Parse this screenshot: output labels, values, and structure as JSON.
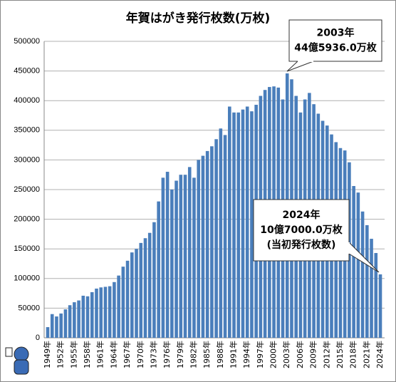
{
  "chart_data": {
    "type": "bar",
    "title": "年賀はがき発行枚数(万枚)",
    "categories": [
      "1949年",
      null,
      null,
      "1952年",
      null,
      null,
      "1955年",
      null,
      null,
      "1958年",
      null,
      null,
      "1961年",
      null,
      null,
      "1964年",
      null,
      null,
      "1967年",
      null,
      null,
      "1970年",
      null,
      null,
      "1973年",
      null,
      null,
      "1976年",
      null,
      null,
      "1979年",
      null,
      null,
      "1982年",
      null,
      null,
      "1985年",
      null,
      null,
      "1988年",
      null,
      null,
      "1991年",
      null,
      null,
      "1994年",
      null,
      null,
      "1997年",
      null,
      null,
      "2000年",
      null,
      null,
      "2003年",
      null,
      null,
      "2006年",
      null,
      null,
      "2009年",
      null,
      null,
      "2012年",
      null,
      null,
      "2015年",
      null,
      null,
      "2018年",
      null,
      null,
      "2021年",
      null,
      null,
      "2024年"
    ],
    "values": [
      18000,
      40000,
      36000,
      41000,
      48000,
      55000,
      60000,
      63000,
      71000,
      70000,
      77000,
      83000,
      85000,
      86000,
      87000,
      94000,
      105000,
      120000,
      130000,
      144000,
      150000,
      160000,
      168000,
      177000,
      195000,
      230000,
      270000,
      280000,
      250000,
      265000,
      275000,
      275000,
      288000,
      270000,
      300000,
      307000,
      315000,
      323000,
      335000,
      353000,
      342000,
      390000,
      380000,
      380000,
      385000,
      390000,
      382000,
      393000,
      408000,
      418000,
      423000,
      424000,
      422000,
      402000,
      445936,
      436000,
      408000,
      380000,
      402000,
      413000,
      394000,
      378000,
      366000,
      358000,
      343000,
      330000,
      320000,
      316000,
      296000,
      256000,
      245000,
      213000,
      190000,
      167000,
      143000,
      107000
    ],
    "color": "#4a7ebb",
    "ylim": [
      0,
      500000
    ],
    "yticks": [
      0,
      50000,
      100000,
      150000,
      200000,
      250000,
      300000,
      350000,
      400000,
      450000,
      500000
    ],
    "grid": true,
    "annotations": [
      {
        "lines": [
          "2003年",
          "44億5936.0万枚"
        ]
      },
      {
        "lines": [
          "2024年",
          "10億7000.0万枚",
          "(当初発行枚数)"
        ]
      }
    ]
  }
}
